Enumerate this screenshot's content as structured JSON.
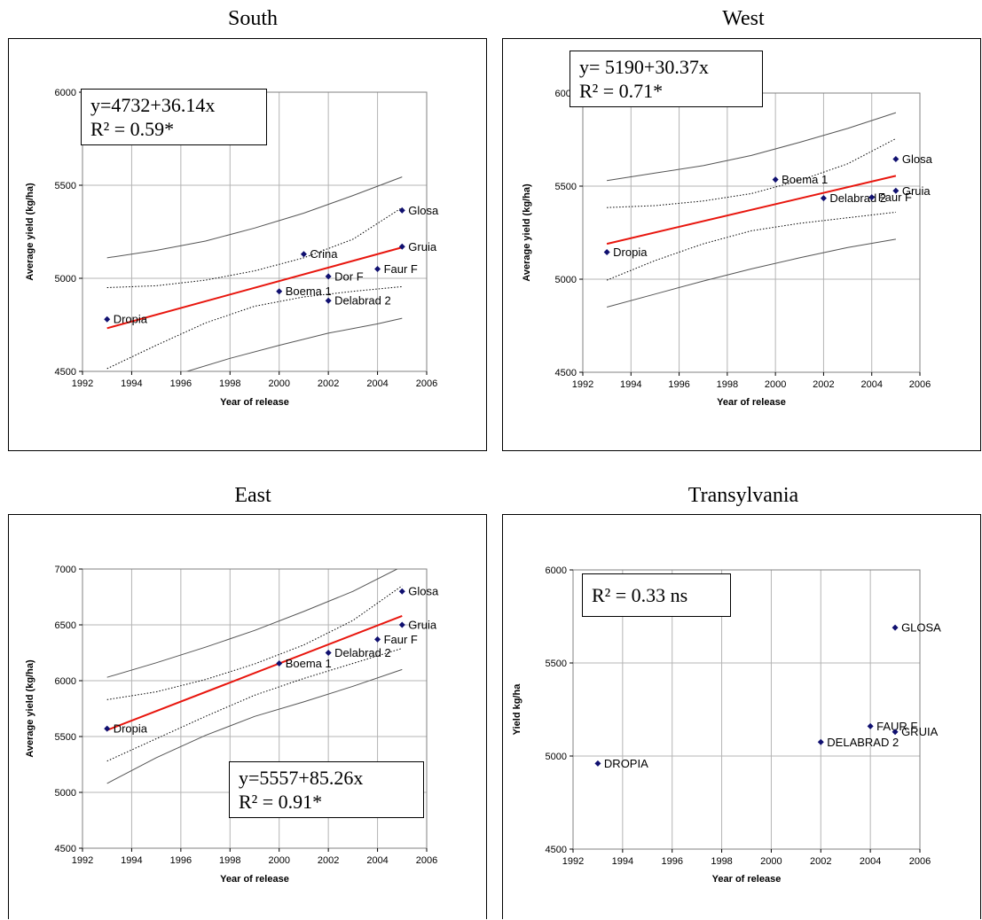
{
  "chart_data": [
    {
      "type": "scatter",
      "title": "South",
      "xlabel": "Year of release",
      "ylabel": "Average yield (kg/ha)",
      "xlim": [
        1992,
        2006
      ],
      "ylim": [
        4500,
        6000
      ],
      "xticks": [
        1992,
        1994,
        1996,
        1998,
        2000,
        2002,
        2004,
        2006
      ],
      "yticks": [
        4500,
        5000,
        5500,
        6000
      ],
      "grid": true,
      "equation": "y=4732+36.14x",
      "r2": "R² = 0.59*",
      "points": [
        {
          "label": "Dropia",
          "x": 1993,
          "y": 4780
        },
        {
          "label": "Boema 1",
          "x": 2000,
          "y": 4930
        },
        {
          "label": "Crina",
          "x": 2001,
          "y": 5130
        },
        {
          "label": "Dor F",
          "x": 2002,
          "y": 5010
        },
        {
          "label": "Delabrad 2",
          "x": 2002,
          "y": 4880
        },
        {
          "label": "Faur F",
          "x": 2004,
          "y": 5050
        },
        {
          "label": "Glosa",
          "x": 2005,
          "y": 5365
        },
        {
          "label": "Gruia",
          "x": 2005,
          "y": 5170
        }
      ],
      "regression": [
        {
          "x": 1993,
          "y": 4732
        },
        {
          "x": 2005,
          "y": 5166
        }
      ],
      "confidence_upper": [
        {
          "x": 1993,
          "y": 4950
        },
        {
          "x": 1995,
          "y": 4960
        },
        {
          "x": 1997,
          "y": 4990
        },
        {
          "x": 1999,
          "y": 5040
        },
        {
          "x": 2001,
          "y": 5110
        },
        {
          "x": 2003,
          "y": 5210
        },
        {
          "x": 2005,
          "y": 5380
        }
      ],
      "confidence_lower": [
        {
          "x": 1993,
          "y": 4515
        },
        {
          "x": 1995,
          "y": 4640
        },
        {
          "x": 1997,
          "y": 4760
        },
        {
          "x": 1999,
          "y": 4850
        },
        {
          "x": 2001,
          "y": 4900
        },
        {
          "x": 2003,
          "y": 4930
        },
        {
          "x": 2005,
          "y": 4955
        }
      ],
      "prediction_upper": [
        {
          "x": 1993,
          "y": 5110
        },
        {
          "x": 1995,
          "y": 5150
        },
        {
          "x": 1997,
          "y": 5200
        },
        {
          "x": 1999,
          "y": 5270
        },
        {
          "x": 2001,
          "y": 5350
        },
        {
          "x": 2003,
          "y": 5445
        },
        {
          "x": 2005,
          "y": 5545
        }
      ],
      "prediction_lower": [
        {
          "x": 1996,
          "y": 4490
        },
        {
          "x": 1998,
          "y": 4570
        },
        {
          "x": 2000,
          "y": 4640
        },
        {
          "x": 2002,
          "y": 4705
        },
        {
          "x": 2004,
          "y": 4755
        },
        {
          "x": 2005,
          "y": 4785
        }
      ]
    },
    {
      "type": "scatter",
      "title": "West",
      "xlabel": "Year of release",
      "ylabel": "Average yield (kg/ha)",
      "xlim": [
        1992,
        2006
      ],
      "ylim": [
        4500,
        6000
      ],
      "xticks": [
        1992,
        1994,
        1996,
        1998,
        2000,
        2002,
        2004,
        2006
      ],
      "yticks": [
        4500,
        5000,
        5500,
        6000
      ],
      "grid": true,
      "equation": "y= 5190+30.37x",
      "r2": "R² = 0.71*",
      "points": [
        {
          "label": "Dropia",
          "x": 1993,
          "y": 5145
        },
        {
          "label": "Boema 1",
          "x": 2000,
          "y": 5535
        },
        {
          "label": "Delabrad 2",
          "x": 2002,
          "y": 5435
        },
        {
          "label": "Faur F",
          "x": 2004,
          "y": 5440
        },
        {
          "label": "Glosa",
          "x": 2005,
          "y": 5645
        },
        {
          "label": "Gruia",
          "x": 2005,
          "y": 5475
        }
      ],
      "regression": [
        {
          "x": 1993,
          "y": 5190
        },
        {
          "x": 2005,
          "y": 5555
        }
      ],
      "confidence_upper": [
        {
          "x": 1993,
          "y": 5385
        },
        {
          "x": 1995,
          "y": 5395
        },
        {
          "x": 1997,
          "y": 5420
        },
        {
          "x": 1999,
          "y": 5460
        },
        {
          "x": 2001,
          "y": 5530
        },
        {
          "x": 2003,
          "y": 5620
        },
        {
          "x": 2005,
          "y": 5755
        }
      ],
      "confidence_lower": [
        {
          "x": 1993,
          "y": 4995
        },
        {
          "x": 1995,
          "y": 5100
        },
        {
          "x": 1997,
          "y": 5190
        },
        {
          "x": 1999,
          "y": 5260
        },
        {
          "x": 2001,
          "y": 5300
        },
        {
          "x": 2003,
          "y": 5330
        },
        {
          "x": 2005,
          "y": 5360
        }
      ],
      "prediction_upper": [
        {
          "x": 1993,
          "y": 5530
        },
        {
          "x": 1995,
          "y": 5570
        },
        {
          "x": 1997,
          "y": 5610
        },
        {
          "x": 1999,
          "y": 5665
        },
        {
          "x": 2001,
          "y": 5735
        },
        {
          "x": 2003,
          "y": 5810
        },
        {
          "x": 2005,
          "y": 5895
        }
      ],
      "prediction_lower": [
        {
          "x": 1993,
          "y": 4850
        },
        {
          "x": 1995,
          "y": 4920
        },
        {
          "x": 1997,
          "y": 4990
        },
        {
          "x": 1999,
          "y": 5055
        },
        {
          "x": 2001,
          "y": 5115
        },
        {
          "x": 2003,
          "y": 5170
        },
        {
          "x": 2005,
          "y": 5215
        }
      ]
    },
    {
      "type": "scatter",
      "title": "East",
      "xlabel": "Year of release",
      "ylabel": "Average yield (kg/ha)",
      "xlim": [
        1992,
        2006
      ],
      "ylim": [
        4500,
        7000
      ],
      "xticks": [
        1992,
        1994,
        1996,
        1998,
        2000,
        2002,
        2004,
        2006
      ],
      "yticks": [
        4500,
        5000,
        5500,
        6000,
        6500,
        7000
      ],
      "grid": true,
      "equation": "y=5557+85.26x",
      "r2": "R² = 0.91*",
      "points": [
        {
          "label": "Dropia",
          "x": 1993,
          "y": 5570
        },
        {
          "label": "Boema 1",
          "x": 2000,
          "y": 6155
        },
        {
          "label": "Delabrad 2",
          "x": 2002,
          "y": 6250
        },
        {
          "label": "Faur F",
          "x": 2004,
          "y": 6370
        },
        {
          "label": "Glosa",
          "x": 2005,
          "y": 6800
        },
        {
          "label": "Gruia",
          "x": 2005,
          "y": 6500
        }
      ],
      "regression": [
        {
          "x": 1993,
          "y": 5557
        },
        {
          "x": 2005,
          "y": 6580
        }
      ],
      "confidence_upper": [
        {
          "x": 1993,
          "y": 5830
        },
        {
          "x": 1995,
          "y": 5900
        },
        {
          "x": 1997,
          "y": 6010
        },
        {
          "x": 1999,
          "y": 6150
        },
        {
          "x": 2001,
          "y": 6320
        },
        {
          "x": 2003,
          "y": 6540
        },
        {
          "x": 2005,
          "y": 6850
        }
      ],
      "confidence_lower": [
        {
          "x": 1993,
          "y": 5280
        },
        {
          "x": 1995,
          "y": 5480
        },
        {
          "x": 1997,
          "y": 5680
        },
        {
          "x": 1999,
          "y": 5870
        },
        {
          "x": 2001,
          "y": 6020
        },
        {
          "x": 2003,
          "y": 6155
        },
        {
          "x": 2005,
          "y": 6290
        }
      ],
      "prediction_upper": [
        {
          "x": 1993,
          "y": 6030
        },
        {
          "x": 1995,
          "y": 6160
        },
        {
          "x": 1997,
          "y": 6300
        },
        {
          "x": 1999,
          "y": 6450
        },
        {
          "x": 2001,
          "y": 6620
        },
        {
          "x": 2003,
          "y": 6800
        },
        {
          "x": 2004.8,
          "y": 7000
        }
      ],
      "prediction_lower": [
        {
          "x": 1993,
          "y": 5080
        },
        {
          "x": 1995,
          "y": 5310
        },
        {
          "x": 1997,
          "y": 5510
        },
        {
          "x": 1999,
          "y": 5680
        },
        {
          "x": 2001,
          "y": 5810
        },
        {
          "x": 2003,
          "y": 5950
        },
        {
          "x": 2005,
          "y": 6100
        }
      ]
    },
    {
      "type": "scatter",
      "title": "Transylvania",
      "xlabel": "Year of release",
      "ylabel": "Yield kg/ha",
      "xlim": [
        1992,
        2006
      ],
      "ylim": [
        4500,
        6000
      ],
      "xticks": [
        1992,
        1994,
        1996,
        1998,
        2000,
        2002,
        2004,
        2006
      ],
      "yticks": [
        4500,
        5000,
        5500,
        6000
      ],
      "grid": true,
      "equation": "",
      "r2": "R² = 0.33 ns",
      "points": [
        {
          "label": "DROPIA",
          "x": 1993,
          "y": 4960
        },
        {
          "label": "DELABRAD 2",
          "x": 2002,
          "y": 5075
        },
        {
          "label": "FAUR F",
          "x": 2004,
          "y": 5160
        },
        {
          "label": "GLOSA",
          "x": 2005,
          "y": 5690
        },
        {
          "label": "GRUIA",
          "x": 2005,
          "y": 5130
        }
      ],
      "regression": [],
      "confidence_upper": [],
      "confidence_lower": [],
      "prediction_upper": [],
      "prediction_lower": []
    }
  ]
}
